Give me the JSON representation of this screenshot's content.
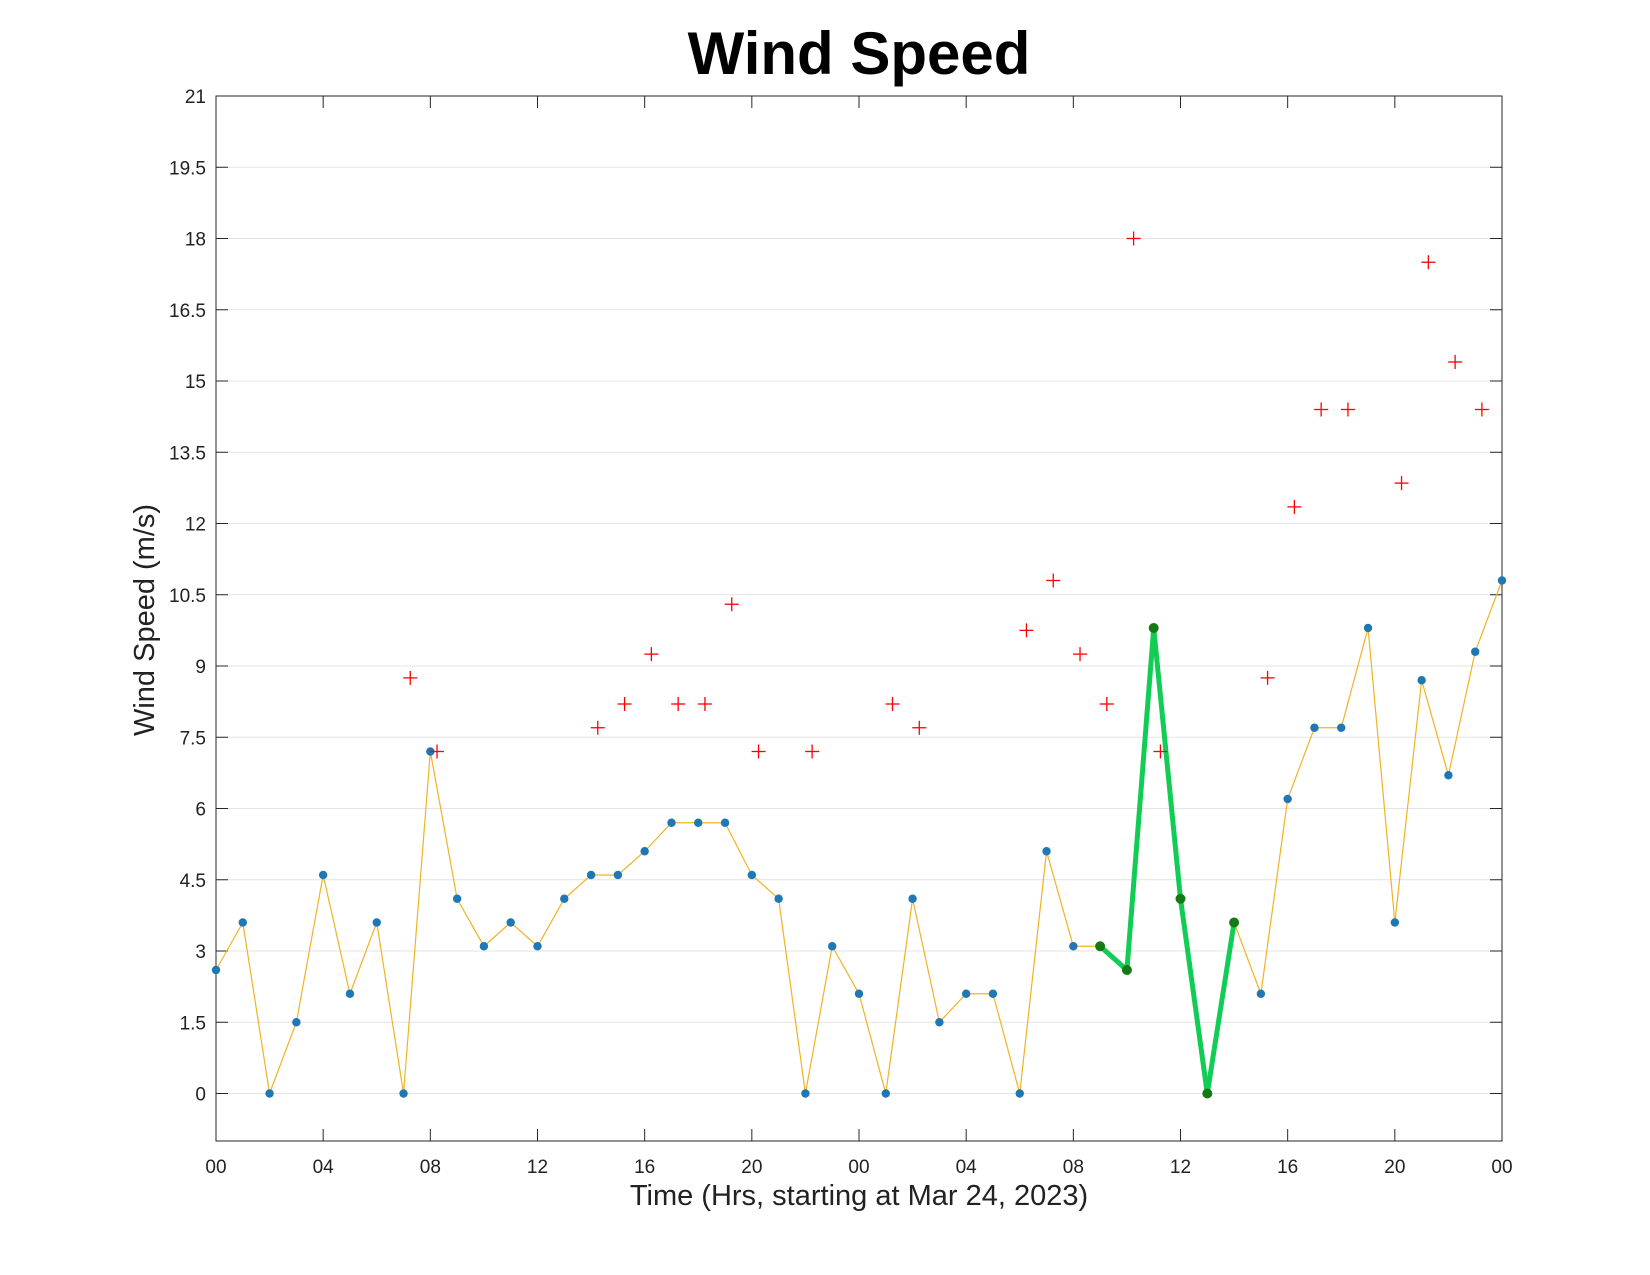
{
  "chart_data": {
    "type": "line",
    "title": "Wind Speed",
    "xlabel": "Time (Hrs, starting at Mar 24, 2023)",
    "ylabel": "Wind Speed (m/s)",
    "xlim": [
      0,
      48
    ],
    "ylim": [
      -1,
      21
    ],
    "grid": "horizontal",
    "x_ticks": [
      {
        "x": 0,
        "label": "00"
      },
      {
        "x": 4,
        "label": "04"
      },
      {
        "x": 8,
        "label": "08"
      },
      {
        "x": 12,
        "label": "12"
      },
      {
        "x": 16,
        "label": "16"
      },
      {
        "x": 20,
        "label": "20"
      },
      {
        "x": 24,
        "label": "00"
      },
      {
        "x": 28,
        "label": "04"
      },
      {
        "x": 32,
        "label": "08"
      },
      {
        "x": 36,
        "label": "12"
      },
      {
        "x": 40,
        "label": "16"
      },
      {
        "x": 44,
        "label": "20"
      },
      {
        "x": 48,
        "label": "00"
      }
    ],
    "y_ticks": [
      {
        "y": 0,
        "label": "0"
      },
      {
        "y": 1.5,
        "label": "1.5"
      },
      {
        "y": 3,
        "label": "3"
      },
      {
        "y": 4.5,
        "label": "4.5"
      },
      {
        "y": 6,
        "label": "6"
      },
      {
        "y": 7.5,
        "label": "7.5"
      },
      {
        "y": 9,
        "label": "9"
      },
      {
        "y": 10.5,
        "label": "10.5"
      },
      {
        "y": 12,
        "label": "12"
      },
      {
        "y": 13.5,
        "label": "13.5"
      },
      {
        "y": 15,
        "label": "15"
      },
      {
        "y": 16.5,
        "label": "16.5"
      },
      {
        "y": 18,
        "label": "18"
      },
      {
        "y": 19.5,
        "label": "19.5"
      },
      {
        "y": 21,
        "label": "21"
      }
    ],
    "series": [
      {
        "style": "line-with-dots",
        "line_color": "#f0b323",
        "marker_color": "#1f77b4",
        "x": [
          0,
          1,
          2,
          3,
          4,
          5,
          6,
          7,
          8,
          9,
          10,
          11,
          12,
          13,
          14,
          15,
          16,
          17,
          18,
          19,
          20,
          21,
          22,
          23,
          24,
          25,
          26,
          27,
          28,
          29,
          30,
          31,
          32,
          33,
          34,
          35,
          36,
          37,
          38,
          39,
          40,
          41,
          42,
          43,
          44,
          45,
          46,
          47,
          48
        ],
        "y": [
          2.6,
          3.6,
          0,
          1.5,
          4.6,
          2.1,
          3.6,
          0,
          7.2,
          4.1,
          3.1,
          3.6,
          3.1,
          4.1,
          4.6,
          4.6,
          5.1,
          5.7,
          5.7,
          5.7,
          4.6,
          4.1,
          0,
          3.1,
          2.1,
          0,
          4.1,
          1.5,
          2.1,
          2.1,
          0,
          5.1,
          3.1,
          3.1,
          2.6,
          9.8,
          4.1,
          0,
          3.6,
          2.1,
          6.2,
          7.7,
          7.7,
          9.8,
          3.6,
          8.7,
          6.7,
          9.3,
          10.8
        ]
      },
      {
        "style": "highlight",
        "line_color": "#11cc55",
        "marker_color": "#157a15",
        "x": [
          33,
          34,
          35,
          36,
          37,
          38
        ],
        "y": [
          3.1,
          2.6,
          9.8,
          4.1,
          0,
          3.6
        ]
      },
      {
        "style": "plus-markers",
        "marker_color": "#ff0000",
        "x": [
          7.25,
          8.25,
          14.25,
          15.25,
          16.25,
          17.25,
          18.25,
          19.25,
          20.25,
          22.25,
          25.25,
          26.25,
          30.25,
          31.25,
          32.25,
          33.25,
          34.25,
          35.25,
          39.25,
          40.25,
          41.25,
          42.25,
          44.25,
          45.25,
          46.25,
          47.25
        ],
        "y": [
          8.75,
          7.2,
          7.7,
          8.2,
          9.25,
          8.2,
          8.2,
          10.3,
          7.2,
          7.2,
          8.2,
          7.7,
          9.75,
          10.8,
          9.25,
          8.2,
          18,
          7.2,
          8.75,
          12.35,
          14.4,
          14.4,
          12.85,
          17.5,
          15.4,
          14.4
        ]
      }
    ]
  }
}
